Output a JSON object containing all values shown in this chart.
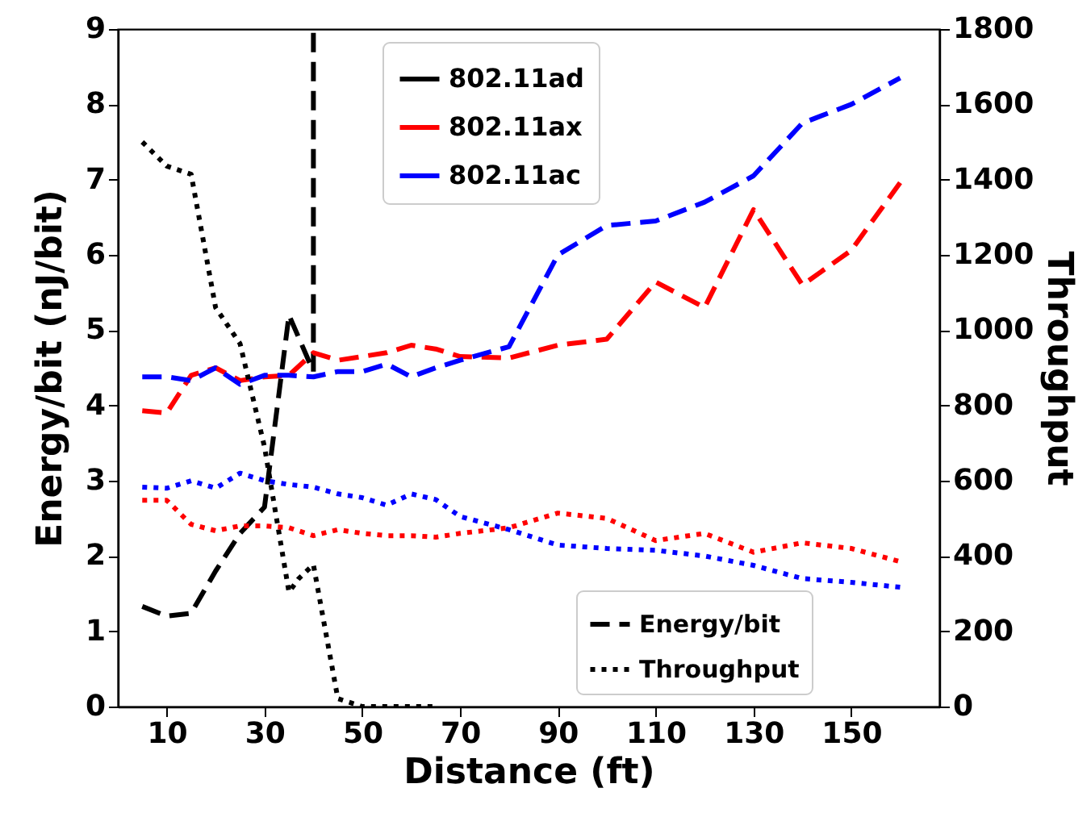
{
  "chart_data": {
    "type": "line",
    "xlabel": "Distance (ft)",
    "ylabel": "Energy/bit (nJ/bit)",
    "y2label": "Throughput",
    "xlim": [
      0,
      168
    ],
    "xticks": [
      10,
      30,
      50,
      70,
      90,
      110,
      130,
      150
    ],
    "ylim": [
      0,
      9
    ],
    "yticks": [
      0,
      1,
      2,
      3,
      4,
      5,
      6,
      7,
      8,
      9
    ],
    "y2lim": [
      0,
      1800
    ],
    "y2ticks": [
      0,
      200,
      400,
      600,
      800,
      1000,
      1200,
      1400,
      1600,
      1800
    ],
    "legend": "top",
    "grid": false,
    "annotations": [
      "Energy/bit",
      "Throughput"
    ],
    "series": [
      {
        "name": "802.11ad",
        "color": "#000000",
        "axis": "y",
        "line_style": "dashed",
        "x": [
          5,
          10,
          15,
          20,
          25,
          30,
          35,
          40,
          40
        ],
        "values": [
          1.33,
          1.2,
          1.24,
          1.8,
          2.3,
          2.65,
          5.2,
          4.45,
          9
        ]
      },
      {
        "name": "802.11ax",
        "color": "#ff0000",
        "axis": "y",
        "line_style": "dashed",
        "x": [
          5,
          10,
          15,
          20,
          25,
          30,
          35,
          40,
          45,
          50,
          55,
          60,
          65,
          70,
          80,
          90,
          100,
          110,
          120,
          130,
          140,
          150,
          160
        ],
        "values": [
          3.93,
          3.9,
          4.4,
          4.5,
          4.33,
          4.38,
          4.4,
          4.7,
          4.6,
          4.65,
          4.7,
          4.8,
          4.75,
          4.65,
          4.63,
          4.8,
          4.88,
          5.64,
          5.3,
          6.6,
          5.6,
          6.06,
          6.96
        ]
      },
      {
        "name": "802.11ac",
        "color": "#0000ff",
        "axis": "y",
        "line_style": "dashed",
        "x": [
          5,
          10,
          15,
          20,
          25,
          30,
          35,
          40,
          45,
          50,
          55,
          60,
          65,
          70,
          80,
          90,
          100,
          110,
          120,
          130,
          140,
          150,
          160
        ],
        "values": [
          4.38,
          4.38,
          4.33,
          4.5,
          4.28,
          4.4,
          4.4,
          4.38,
          4.45,
          4.45,
          4.55,
          4.38,
          4.5,
          4.6,
          4.78,
          6.0,
          6.39,
          6.45,
          6.7,
          7.05,
          7.75,
          8.0,
          8.35
        ]
      },
      {
        "color": "#000000",
        "axis": "y2",
        "line_style": "dotted",
        "x": [
          5,
          10,
          15,
          20,
          25,
          30,
          35,
          37,
          40,
          45,
          50,
          55,
          60,
          65
        ],
        "values": [
          1500,
          1436,
          1414,
          1060,
          964,
          690,
          304,
          340,
          377,
          21,
          0,
          0,
          0,
          0
        ]
      },
      {
        "color": "#ff0000",
        "axis": "y2",
        "line_style": "dotted",
        "x": [
          5,
          10,
          15,
          20,
          25,
          30,
          35,
          40,
          45,
          50,
          55,
          60,
          65,
          70,
          80,
          90,
          100,
          110,
          120,
          130,
          140,
          150,
          160
        ],
        "values": [
          548,
          548,
          484,
          467,
          480,
          480,
          475,
          454,
          470,
          460,
          454,
          454,
          450,
          460,
          475,
          514,
          500,
          441,
          460,
          410,
          435,
          420,
          385
        ]
      },
      {
        "color": "#0000ff",
        "axis": "y2",
        "line_style": "dotted",
        "x": [
          5,
          10,
          15,
          20,
          25,
          30,
          35,
          40,
          45,
          50,
          55,
          60,
          65,
          70,
          80,
          90,
          100,
          110,
          120,
          130,
          140,
          150,
          160
        ],
        "values": [
          583,
          580,
          600,
          580,
          620,
          600,
          590,
          583,
          565,
          555,
          535,
          565,
          550,
          505,
          470,
          429,
          420,
          415,
          400,
          375,
          340,
          330,
          317
        ]
      }
    ]
  }
}
